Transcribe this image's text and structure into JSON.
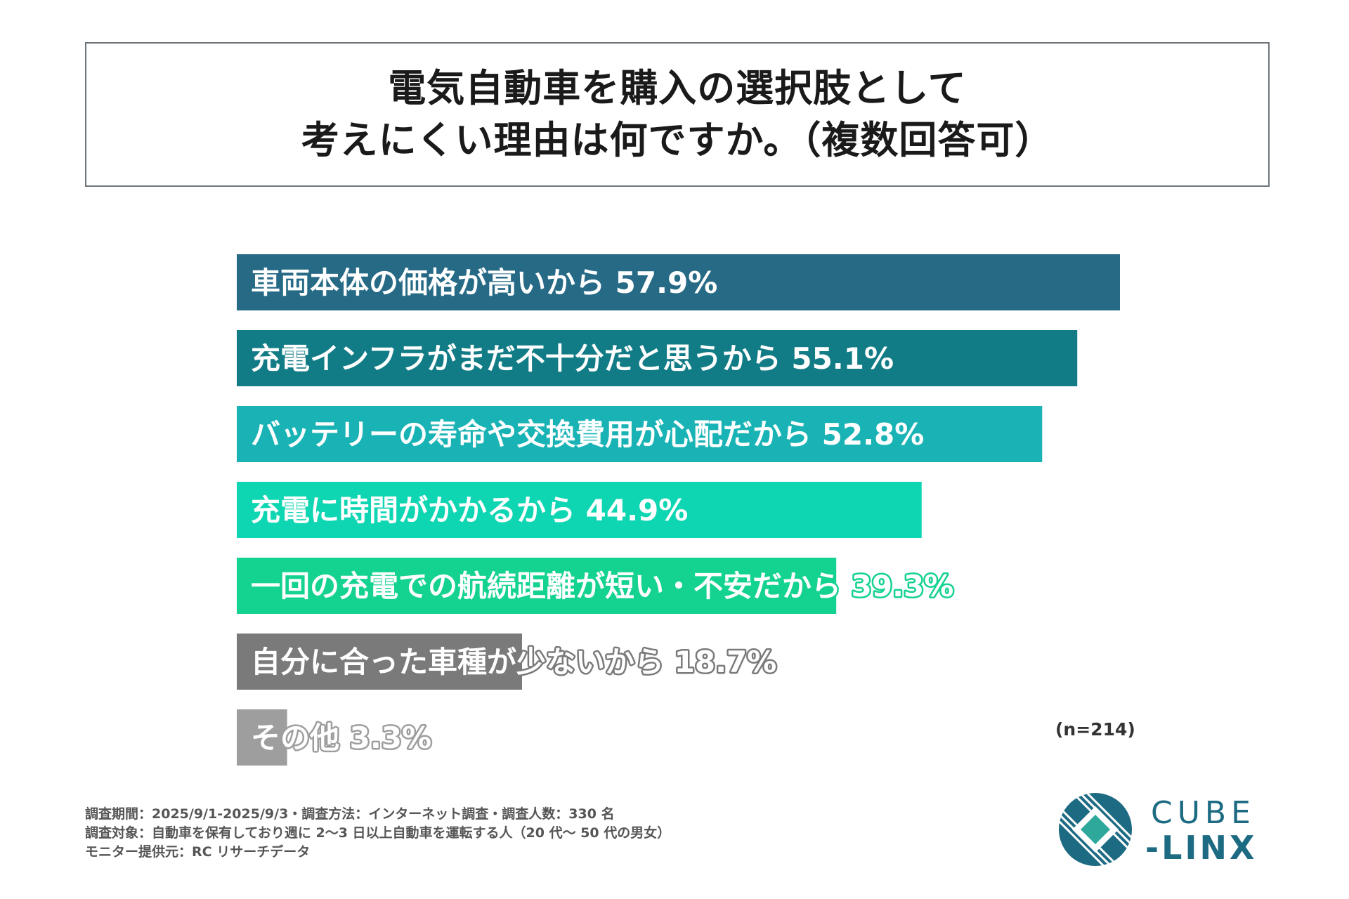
{
  "title": {
    "line1": "電気自動車を購入の選択肢として",
    "line2": "考えにくい理由は何ですか。（複数回答可）"
  },
  "chart_data": {
    "type": "bar",
    "orientation": "horizontal",
    "categories": [
      "車両本体の価格が高いから",
      "充電インフラがまだ不十分だと思うから",
      "バッテリーの寿命や交換費用が心配だから",
      "充電に時間がかかるから",
      "一回の充電での航続距離が短い・不安だから",
      "自分に合った車種が少ないから",
      "その他"
    ],
    "values": [
      57.9,
      55.1,
      52.8,
      44.9,
      39.3,
      18.7,
      3.3
    ],
    "value_labels": [
      "57.9%",
      "55.1%",
      "52.8%",
      "44.9%",
      "39.3%",
      "18.7%",
      "3.3%"
    ],
    "colors": [
      "#266a86",
      "#127c86",
      "#19b3b5",
      "#0fd6b2",
      "#14d28f",
      "#7a7a7a",
      "#9e9e9e"
    ],
    "xlim": [
      0,
      57.9
    ],
    "grid": false,
    "legend": "none"
  },
  "sample_note": "(n=214)",
  "footer": {
    "line1": "調査期間：2025/9/1-2025/9/3・調査方法：インターネット調査・調査人数：330 名",
    "line2": "調査対象：自動車を保有しており週に 2〜3 日以上自動車を運転する人（20 代〜 50 代の男女）",
    "line3": "モニター提供元：RC リサーチデータ"
  },
  "logo": {
    "line1": "CUBE",
    "line2": "-LINX",
    "color": "#1d6a83",
    "accent": "#2ea89a"
  }
}
